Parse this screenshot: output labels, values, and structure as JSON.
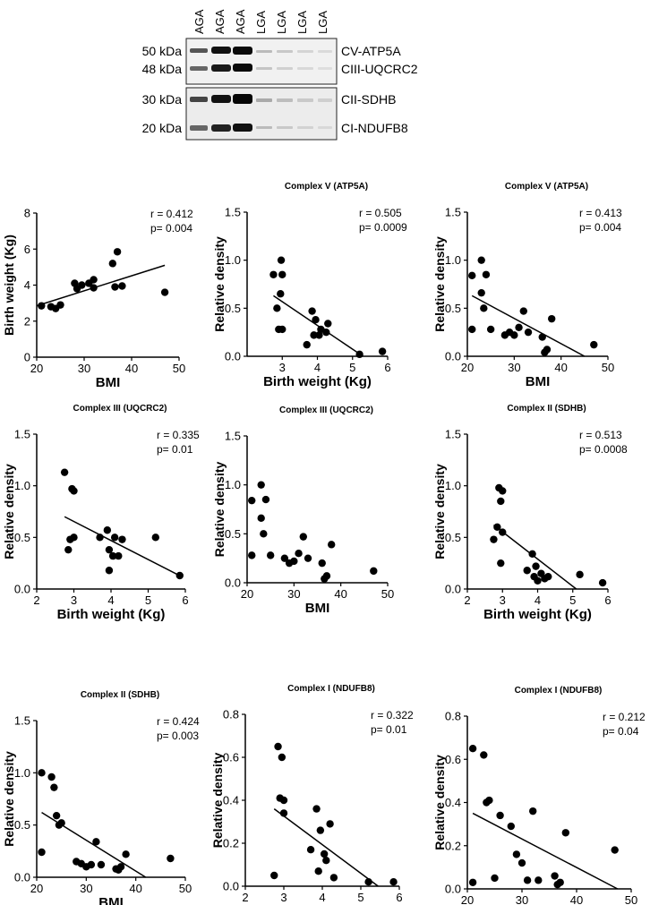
{
  "blot": {
    "lanes": [
      "AGA",
      "AGA",
      "AGA",
      "LGA",
      "LGA",
      "LGA",
      "LGA"
    ],
    "mw_labels": [
      "50 kDa",
      "48 kDa",
      "30 kDa",
      "20 kDa"
    ],
    "protein_labels": [
      "CV-ATP5A",
      "CIII-UQCRC2",
      "CII-SDHB",
      "CI-NDUFB8"
    ]
  },
  "chart_data": [
    {
      "type": "scatter",
      "title": "",
      "xlabel": "BMI",
      "ylabel": "Birth weight (Kg)",
      "xlim": [
        20,
        50
      ],
      "ylim": [
        0,
        8
      ],
      "xticks": [
        20,
        30,
        40,
        50
      ],
      "yticks": [
        0,
        2,
        4,
        6,
        8
      ],
      "stat_r": "r = 0.412",
      "stat_p": "p= 0.004",
      "points": [
        [
          21,
          2.85
        ],
        [
          23,
          2.8
        ],
        [
          24,
          2.7
        ],
        [
          25,
          2.9
        ],
        [
          28,
          4.1
        ],
        [
          28.5,
          3.8
        ],
        [
          29.5,
          4.0
        ],
        [
          31,
          4.1
        ],
        [
          32,
          4.3
        ],
        [
          32,
          3.85
        ],
        [
          36,
          5.2
        ],
        [
          36.5,
          3.9
        ],
        [
          37,
          5.85
        ],
        [
          38,
          3.95
        ],
        [
          47,
          3.6
        ]
      ],
      "fit": [
        [
          20,
          2.85
        ],
        [
          47,
          5.1
        ]
      ]
    },
    {
      "type": "scatter",
      "title": "Complex V (ATP5A)",
      "xlabel": "Birth weight (Kg)",
      "ylabel": "Relative density",
      "xlim": [
        2,
        6
      ],
      "ylim": [
        0,
        1.5
      ],
      "xticks": [
        3,
        4,
        5,
        6
      ],
      "yticks": [
        0.0,
        0.5,
        1.0,
        1.5
      ],
      "stat_r": "r = 0.505",
      "stat_p": "p= 0.0009",
      "points": [
        [
          2.75,
          0.85
        ],
        [
          2.85,
          0.5
        ],
        [
          2.9,
          0.28
        ],
        [
          2.95,
          0.65
        ],
        [
          2.97,
          1.0
        ],
        [
          3.0,
          0.85
        ],
        [
          3.0,
          0.28
        ],
        [
          3.7,
          0.12
        ],
        [
          3.85,
          0.47
        ],
        [
          3.9,
          0.22
        ],
        [
          3.95,
          0.38
        ],
        [
          4.05,
          0.22
        ],
        [
          4.1,
          0.28
        ],
        [
          4.25,
          0.25
        ],
        [
          4.3,
          0.34
        ],
        [
          5.2,
          0.02
        ],
        [
          5.85,
          0.05
        ]
      ],
      "fit": [
        [
          2.75,
          0.63
        ],
        [
          5.3,
          0.0
        ]
      ]
    },
    {
      "type": "scatter",
      "title": "Complex V (ATP5A)",
      "xlabel": "BMI",
      "ylabel": "Relative density",
      "xlim": [
        20,
        50
      ],
      "ylim": [
        0,
        1.5
      ],
      "xticks": [
        20,
        30,
        40,
        50
      ],
      "yticks": [
        0.0,
        0.5,
        1.0,
        1.5
      ],
      "stat_r": "r = 0.413",
      "stat_p": "p= 0.004",
      "points": [
        [
          21,
          0.84
        ],
        [
          21,
          0.28
        ],
        [
          23,
          1.0
        ],
        [
          23,
          0.66
        ],
        [
          23.5,
          0.5
        ],
        [
          24,
          0.85
        ],
        [
          25,
          0.28
        ],
        [
          28,
          0.22
        ],
        [
          29,
          0.25
        ],
        [
          30,
          0.22
        ],
        [
          31,
          0.3
        ],
        [
          32,
          0.47
        ],
        [
          33,
          0.25
        ],
        [
          36,
          0.2
        ],
        [
          36.5,
          0.04
        ],
        [
          37,
          0.07
        ],
        [
          38,
          0.39
        ],
        [
          47,
          0.12
        ]
      ],
      "fit": [
        [
          21,
          0.63
        ],
        [
          45,
          0.0
        ]
      ]
    },
    {
      "type": "scatter",
      "title": "Complex III (UQCRC2)",
      "xlabel": "Birth weight (Kg)",
      "ylabel": "Relative density",
      "xlim": [
        2,
        6
      ],
      "ylim": [
        0,
        1.5
      ],
      "xticks": [
        2,
        3,
        4,
        5,
        6
      ],
      "yticks": [
        0.0,
        0.5,
        1.0,
        1.5
      ],
      "stat_r": "r = 0.335",
      "stat_p": "p= 0.01",
      "points": [
        [
          2.75,
          1.13
        ],
        [
          2.85,
          0.38
        ],
        [
          2.9,
          0.48
        ],
        [
          2.95,
          0.97
        ],
        [
          3.0,
          0.95
        ],
        [
          3.0,
          0.5
        ],
        [
          3.7,
          0.5
        ],
        [
          3.9,
          0.57
        ],
        [
          3.95,
          0.38
        ],
        [
          3.95,
          0.18
        ],
        [
          4.05,
          0.32
        ],
        [
          4.1,
          0.5
        ],
        [
          4.2,
          0.32
        ],
        [
          4.3,
          0.48
        ],
        [
          5.2,
          0.5
        ],
        [
          5.85,
          0.13
        ]
      ],
      "fit": [
        [
          2.75,
          0.7
        ],
        [
          5.9,
          0.12
        ]
      ]
    },
    {
      "type": "scatter",
      "title": "Complex III (UQCRC2)",
      "xlabel": "BMI",
      "ylabel": "Relative density",
      "xlim": [
        20,
        50
      ],
      "ylim": [
        0,
        1.5
      ],
      "xticks": [
        20,
        30,
        40,
        50
      ],
      "yticks": [
        0.0,
        0.5,
        1.0,
        1.5
      ],
      "stat_r": "",
      "stat_p": "",
      "points": [
        [
          21,
          0.84
        ],
        [
          21,
          0.28
        ],
        [
          23,
          1.0
        ],
        [
          23,
          0.66
        ],
        [
          23.5,
          0.5
        ],
        [
          24,
          0.85
        ],
        [
          25,
          0.28
        ],
        [
          28,
          0.25
        ],
        [
          29,
          0.2
        ],
        [
          30,
          0.22
        ],
        [
          31,
          0.3
        ],
        [
          32,
          0.47
        ],
        [
          33,
          0.25
        ],
        [
          36,
          0.2
        ],
        [
          36.5,
          0.04
        ],
        [
          37,
          0.07
        ],
        [
          38,
          0.39
        ],
        [
          47,
          0.12
        ]
      ],
      "fit": []
    },
    {
      "type": "scatter",
      "title": "Complex II (SDHB)",
      "xlabel": "Birth weight (Kg)",
      "ylabel": "Relative density",
      "xlim": [
        2,
        6
      ],
      "ylim": [
        0,
        1.5
      ],
      "xticks": [
        2,
        3,
        4,
        5,
        6
      ],
      "yticks": [
        0.0,
        0.5,
        1.0,
        1.5
      ],
      "stat_r": "r = 0.513",
      "stat_p": "p= 0.0008",
      "points": [
        [
          2.75,
          0.48
        ],
        [
          2.85,
          0.6
        ],
        [
          2.9,
          0.98
        ],
        [
          2.95,
          0.85
        ],
        [
          3.0,
          0.95
        ],
        [
          3.0,
          0.55
        ],
        [
          2.95,
          0.25
        ],
        [
          3.7,
          0.18
        ],
        [
          3.85,
          0.34
        ],
        [
          3.9,
          0.12
        ],
        [
          3.95,
          0.22
        ],
        [
          4.0,
          0.08
        ],
        [
          4.1,
          0.15
        ],
        [
          4.2,
          0.1
        ],
        [
          4.3,
          0.12
        ],
        [
          5.2,
          0.14
        ],
        [
          5.85,
          0.06
        ]
      ],
      "fit": [
        [
          2.75,
          0.62
        ],
        [
          5.1,
          0.0
        ]
      ]
    },
    {
      "type": "scatter",
      "title": "Complex II (SDHB)",
      "xlabel": "BMI",
      "ylabel": "Relative density",
      "xlim": [
        20,
        50
      ],
      "ylim": [
        0,
        1.5
      ],
      "xticks": [
        20,
        30,
        40,
        50
      ],
      "yticks": [
        0.0,
        0.5,
        1.0,
        1.5
      ],
      "stat_r": "r = 0.424",
      "stat_p": "p= 0.003",
      "points": [
        [
          21,
          1.0
        ],
        [
          21,
          0.24
        ],
        [
          23,
          0.96
        ],
        [
          23.5,
          0.86
        ],
        [
          24,
          0.59
        ],
        [
          24.5,
          0.5
        ],
        [
          25,
          0.52
        ],
        [
          28,
          0.15
        ],
        [
          29,
          0.13
        ],
        [
          30,
          0.1
        ],
        [
          31,
          0.12
        ],
        [
          32,
          0.34
        ],
        [
          33,
          0.12
        ],
        [
          36,
          0.08
        ],
        [
          36.5,
          0.07
        ],
        [
          37,
          0.1
        ],
        [
          38,
          0.22
        ],
        [
          47,
          0.18
        ]
      ],
      "fit": [
        [
          21,
          0.62
        ],
        [
          42,
          0.0
        ]
      ]
    },
    {
      "type": "scatter",
      "title": "Complex I (NDUFB8)",
      "xlabel": "Birth weight (Kg)",
      "ylabel": "Relative density",
      "xlim": [
        2,
        6
      ],
      "ylim": [
        0,
        0.8
      ],
      "xticks": [
        2,
        3,
        4,
        5,
        6
      ],
      "yticks": [
        0.0,
        0.2,
        0.4,
        0.6,
        0.8
      ],
      "stat_r": "r = 0.322",
      "stat_p": "p= 0.01",
      "points": [
        [
          2.75,
          0.05
        ],
        [
          2.85,
          0.65
        ],
        [
          2.9,
          0.41
        ],
        [
          2.95,
          0.6
        ],
        [
          3.0,
          0.4
        ],
        [
          3.0,
          0.34
        ],
        [
          3.7,
          0.17
        ],
        [
          3.85,
          0.36
        ],
        [
          3.9,
          0.07
        ],
        [
          3.95,
          0.26
        ],
        [
          4.05,
          0.15
        ],
        [
          4.1,
          0.12
        ],
        [
          4.2,
          0.29
        ],
        [
          4.3,
          0.04
        ],
        [
          5.2,
          0.02
        ],
        [
          5.85,
          0.02
        ]
      ],
      "fit": [
        [
          2.75,
          0.36
        ],
        [
          5.45,
          0.0
        ]
      ]
    },
    {
      "type": "scatter",
      "title": "Complex I (NDUFB8)",
      "xlabel": "BMI",
      "ylabel": "Relative density",
      "xlim": [
        20,
        50
      ],
      "ylim": [
        0,
        0.8
      ],
      "xticks": [
        20,
        30,
        40,
        50
      ],
      "yticks": [
        0.0,
        0.2,
        0.4,
        0.6,
        0.8
      ],
      "stat_r": "r = 0.212",
      "stat_p": "p= 0.04",
      "points": [
        [
          21,
          0.65
        ],
        [
          21,
          0.03
        ],
        [
          23,
          0.62
        ],
        [
          23.5,
          0.4
        ],
        [
          24,
          0.41
        ],
        [
          25,
          0.05
        ],
        [
          26,
          0.34
        ],
        [
          28,
          0.29
        ],
        [
          29,
          0.16
        ],
        [
          30,
          0.12
        ],
        [
          31,
          0.04
        ],
        [
          32,
          0.36
        ],
        [
          33,
          0.04
        ],
        [
          36,
          0.06
        ],
        [
          36.5,
          0.02
        ],
        [
          37,
          0.03
        ],
        [
          38,
          0.26
        ],
        [
          47,
          0.18
        ]
      ],
      "fit": [
        [
          21,
          0.35
        ],
        [
          47.5,
          0.0
        ]
      ]
    }
  ]
}
